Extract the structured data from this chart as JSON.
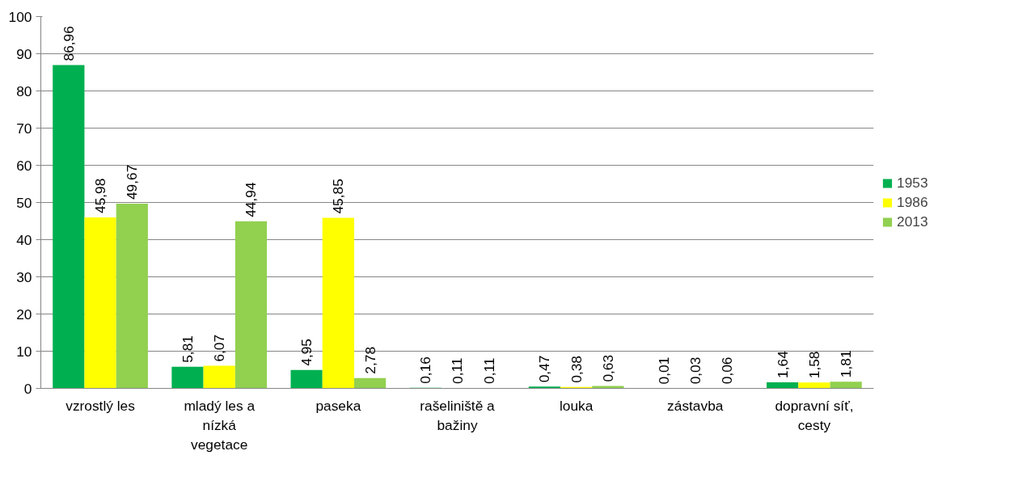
{
  "chart_data": {
    "type": "bar",
    "categories": [
      "vzrostlý les",
      "mladý les a nízká vegetace",
      "paseka",
      "rašeliniště a bažiny",
      "louka",
      "zástavba",
      "dopravní síť, cesty"
    ],
    "series": [
      {
        "name": "1953",
        "color": "#00b050",
        "values": [
          86.96,
          5.81,
          4.95,
          0.16,
          0.47,
          0.01,
          1.64
        ],
        "value_labels": [
          "86,96",
          "5,81",
          "4,95",
          "0,16",
          "0,47",
          "0,01",
          "1,64"
        ]
      },
      {
        "name": "1986",
        "color": "#ffff00",
        "values": [
          45.98,
          6.07,
          45.85,
          0.11,
          0.38,
          0.03,
          1.58
        ],
        "value_labels": [
          "45,98",
          "6,07",
          "45,85",
          "0,11",
          "0,38",
          "0,03",
          "1,58"
        ]
      },
      {
        "name": "2013",
        "color": "#92d050",
        "values": [
          49.67,
          44.94,
          2.78,
          0.11,
          0.63,
          0.06,
          1.81
        ],
        "value_labels": [
          "49,67",
          "44,94",
          "2,78",
          "0,11",
          "0,63",
          "0,06",
          "1,81"
        ]
      }
    ],
    "ylim": [
      0,
      100
    ],
    "yticks": [
      0,
      10,
      20,
      30,
      40,
      50,
      60,
      70,
      80,
      90,
      100
    ],
    "grid": "y",
    "legend": "right"
  }
}
